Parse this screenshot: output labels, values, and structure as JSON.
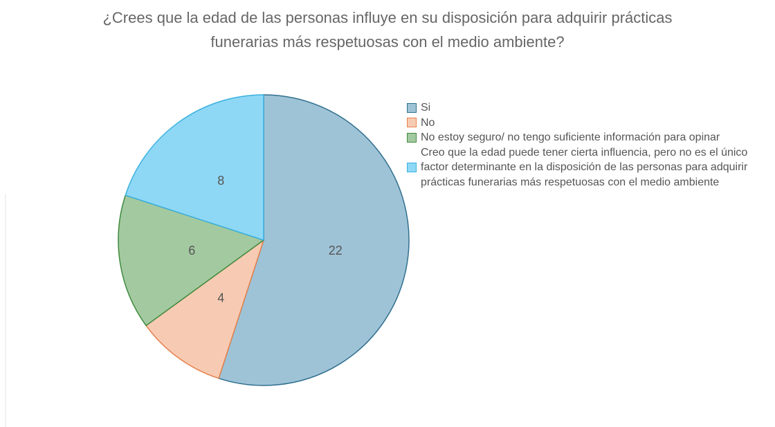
{
  "chart_data": {
    "type": "pie",
    "title": "¿Crees que la edad de las personas influye en su disposición para adquirir prácticas funerarias más respetuosas con el medio ambiente?",
    "categories": [
      "Si",
      "No",
      "No estoy seguro/ no tengo suficiente información para opinar",
      "Creo que la edad puede tener cierta influencia, pero no es el único factor determinante en la disposición de las personas para adquirir prácticas funerarias más respetuosas con el medio ambiente"
    ],
    "values": [
      22,
      4,
      6,
      8
    ],
    "colors": [
      "#9fc3d6",
      "#f7cbb3",
      "#a3c9a0",
      "#8fd8f5"
    ],
    "legend": "right"
  }
}
